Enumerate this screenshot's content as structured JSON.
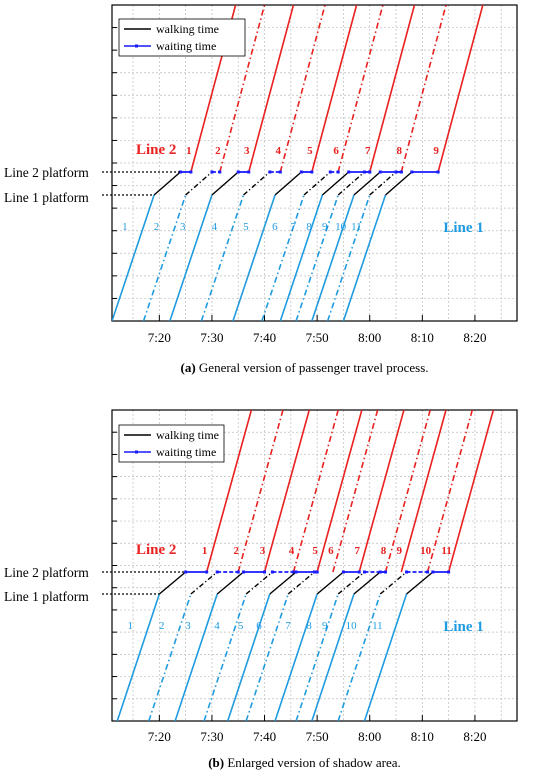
{
  "colors": {
    "line1": "#1f9be0",
    "line2": "#e8211f",
    "walk": "#000000",
    "wait": "#1a1aff",
    "grid": "#bdbdbd"
  },
  "chart_data": [
    {
      "type": "line",
      "caption": {
        "letter": "(a)",
        "text": " General version of passenger travel process."
      },
      "legend": {
        "walking": "walking time",
        "waiting": "waiting time",
        "placement": "top-left"
      },
      "line2_label": "Line 2",
      "line1_label": "Line 1",
      "platform_labels": {
        "line2": "Line 2 platform",
        "line1": "Line 1 platform"
      },
      "x_ticks": [
        {
          "min": 20,
          "label": "7:20"
        },
        {
          "min": 30,
          "label": "7:30"
        },
        {
          "min": 40,
          "label": "7:40"
        },
        {
          "min": 50,
          "label": "7:50"
        },
        {
          "min": 60,
          "label": "8:00"
        },
        {
          "min": 70,
          "label": "8:10"
        },
        {
          "min": 80,
          "label": "8:20"
        }
      ],
      "xlim": [
        11,
        88
      ],
      "grid": true,
      "line1_trains": [
        {
          "label": "1",
          "arrival_min": 19,
          "solid": true
        },
        {
          "label": "2",
          "arrival_min": 25,
          "solid": false
        },
        {
          "label": "3",
          "arrival_min": 30,
          "solid": true
        },
        {
          "label": "4",
          "arrival_min": 36,
          "solid": false
        },
        {
          "label": "5",
          "arrival_min": 42,
          "solid": true
        },
        {
          "label": "6",
          "arrival_min": 47.5,
          "solid": false
        },
        {
          "label": "7",
          "arrival_min": 51,
          "solid": true
        },
        {
          "label": "8",
          "arrival_min": 54,
          "solid": false
        },
        {
          "label": "9",
          "arrival_min": 57,
          "solid": true
        },
        {
          "label": "10",
          "arrival_min": 60,
          "solid": false
        },
        {
          "label": "11",
          "arrival_min": 63,
          "solid": true
        }
      ],
      "line2_trains": [
        {
          "label": "1",
          "departure_min": 26,
          "solid": true
        },
        {
          "label": "2",
          "departure_min": 31.5,
          "solid": false
        },
        {
          "label": "3",
          "departure_min": 37,
          "solid": true
        },
        {
          "label": "4",
          "departure_min": 43,
          "solid": false
        },
        {
          "label": "5",
          "departure_min": 49,
          "solid": true
        },
        {
          "label": "6",
          "departure_min": 54,
          "solid": false
        },
        {
          "label": "7",
          "departure_min": 60,
          "solid": true
        },
        {
          "label": "8",
          "departure_min": 66,
          "solid": false
        },
        {
          "label": "9",
          "departure_min": 73,
          "solid": true
        }
      ]
    },
    {
      "type": "line",
      "caption": {
        "letter": "(b)",
        "text": " Enlarged version of shadow area."
      },
      "legend": {
        "walking": "walking time",
        "waiting": "waiting time",
        "placement": "top-left"
      },
      "line2_label": "Line 2",
      "line1_label": "Line 1",
      "platform_labels": {
        "line2": "Line 2 platform",
        "line1": "Line 1 platform"
      },
      "x_ticks": [
        {
          "min": 20,
          "label": "7:20"
        },
        {
          "min": 30,
          "label": "7:30"
        },
        {
          "min": 40,
          "label": "7:40"
        },
        {
          "min": 50,
          "label": "7:50"
        },
        {
          "min": 60,
          "label": "8:00"
        },
        {
          "min": 70,
          "label": "8:10"
        },
        {
          "min": 80,
          "label": "8:20"
        }
      ],
      "xlim": [
        11,
        88
      ],
      "grid": true,
      "line1_trains": [
        {
          "label": "1",
          "arrival_min": 20,
          "solid": true
        },
        {
          "label": "2",
          "arrival_min": 26,
          "solid": false
        },
        {
          "label": "3",
          "arrival_min": 31,
          "solid": true
        },
        {
          "label": "4",
          "arrival_min": 36.5,
          "solid": false
        },
        {
          "label": "5",
          "arrival_min": 41,
          "solid": true
        },
        {
          "label": "6",
          "arrival_min": 44.5,
          "solid": false
        },
        {
          "label": "7",
          "arrival_min": 50,
          "solid": true
        },
        {
          "label": "8",
          "arrival_min": 54,
          "solid": false
        },
        {
          "label": "9",
          "arrival_min": 57,
          "solid": true
        },
        {
          "label": "10",
          "arrival_min": 62,
          "solid": false
        },
        {
          "label": "11",
          "arrival_min": 67,
          "solid": true
        }
      ],
      "line2_trains": [
        {
          "label": "1",
          "departure_min": 29,
          "solid": true
        },
        {
          "label": "2",
          "departure_min": 35,
          "solid": false
        },
        {
          "label": "3",
          "departure_min": 40,
          "solid": true
        },
        {
          "label": "4",
          "departure_min": 45.5,
          "solid": false
        },
        {
          "label": "5",
          "departure_min": 50,
          "solid": true
        },
        {
          "label": "6",
          "departure_min": 53,
          "solid": false
        },
        {
          "label": "7",
          "departure_min": 58,
          "solid": true
        },
        {
          "label": "8",
          "departure_min": 63,
          "solid": false
        },
        {
          "label": "9",
          "departure_min": 66,
          "solid": true
        },
        {
          "label": "10",
          "departure_min": 71,
          "solid": false
        },
        {
          "label": "11",
          "departure_min": 75,
          "solid": true
        }
      ]
    }
  ]
}
